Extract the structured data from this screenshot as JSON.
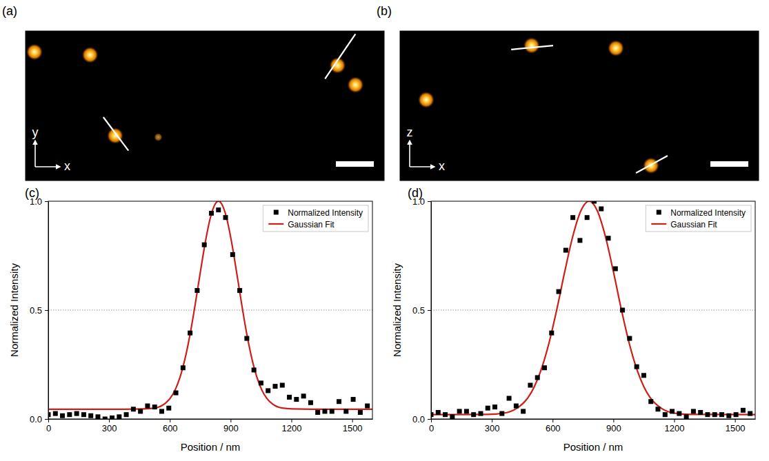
{
  "chart_data": [
    {
      "type": "image",
      "label": "(a)",
      "x_label": "x",
      "y_label": "y",
      "xlim": [
        0,
        1
      ],
      "ylim": [
        1,
        0
      ],
      "tick_labels": false,
      "spots": [
        {
          "x": 0.025,
          "y": 0.14,
          "intensity": 1
        },
        {
          "x": 0.18,
          "y": 0.16,
          "intensity": 1
        },
        {
          "x": 0.87,
          "y": 0.23,
          "intensity": 1
        },
        {
          "x": 0.92,
          "y": 0.36,
          "intensity": 1
        },
        {
          "x": 0.25,
          "y": 0.7,
          "intensity": 1
        },
        {
          "x": 0.37,
          "y": 0.71,
          "intensity": 0.25
        }
      ],
      "profile_lines": [
        {
          "x1": 0.835,
          "y1": 0.32,
          "x2": 0.92,
          "y2": 0.02
        },
        {
          "x1": 0.217,
          "y1": 0.576,
          "x2": 0.287,
          "y2": 0.8
        }
      ]
    },
    {
      "type": "image",
      "label": "(b)",
      "x_label": "x",
      "y_label": "z",
      "xlim": [
        0,
        1
      ],
      "ylim": [
        1,
        0
      ],
      "tick_labels": false,
      "spots": [
        {
          "x": 0.367,
          "y": 0.097,
          "intensity": 1
        },
        {
          "x": 0.602,
          "y": 0.115,
          "intensity": 1
        },
        {
          "x": 0.073,
          "y": 0.46,
          "intensity": 1
        },
        {
          "x": 0.7,
          "y": 0.9,
          "intensity": 1
        }
      ],
      "profile_lines": [
        {
          "x1": 0.31,
          "y1": 0.124,
          "x2": 0.427,
          "y2": 0.097
        },
        {
          "x1": 0.658,
          "y1": 0.949,
          "x2": 0.746,
          "y2": 0.834
        }
      ]
    },
    {
      "type": "scatter",
      "label": "(c)",
      "x_label": "Position / nm",
      "y_label": "Normalized Intensity",
      "xlim": [
        0,
        1600
      ],
      "ylim": [
        0,
        1
      ],
      "xticks": [
        0,
        300,
        600,
        900,
        1200,
        1500
      ],
      "yticks": [
        {
          "value": 0,
          "label": "0.0"
        },
        {
          "value": 0.5,
          "label": "0.5"
        },
        {
          "value": 1,
          "label": "1.0"
        }
      ],
      "hlines": [
        0.5
      ],
      "legend": "upper right",
      "series": [
        {
          "name": "Normalized Intensity",
          "type": "scatter",
          "marker": "square",
          "color": "#000000",
          "x": [
            0,
            35,
            70,
            105,
            140,
            175,
            210,
            245,
            280,
            315,
            350,
            385,
            420,
            455,
            490,
            525,
            560,
            595,
            630,
            665,
            700,
            735,
            770,
            805,
            840,
            875,
            910,
            945,
            980,
            1015,
            1050,
            1085,
            1120,
            1155,
            1190,
            1225,
            1260,
            1295,
            1330,
            1365,
            1400,
            1435,
            1470,
            1505,
            1540,
            1575
          ],
          "values": [
            0.02,
            0.025,
            0.015,
            0.02,
            0.025,
            0.02,
            0.015,
            0.01,
            0.0,
            0.005,
            0.01,
            0.02,
            0.045,
            0.035,
            0.06,
            0.055,
            0.035,
            0.05,
            0.12,
            0.235,
            0.395,
            0.59,
            0.8,
            0.945,
            0.96,
            0.925,
            0.755,
            0.59,
            0.37,
            0.225,
            0.165,
            0.13,
            0.15,
            0.155,
            0.1,
            0.09,
            0.105,
            0.075,
            0.03,
            0.035,
            0.035,
            0.08,
            0.035,
            0.09,
            0.03,
            0.06
          ]
        },
        {
          "name": "Gaussian Fit",
          "type": "line",
          "color": "#cc1f1a",
          "x": [
            0,
            375,
            475,
            525,
            575,
            600,
            625,
            650,
            675,
            700,
            725,
            750,
            775,
            800,
            825,
            840,
            855,
            880,
            905,
            930,
            955,
            980,
            1005,
            1030,
            1055,
            1080,
            1105,
            1155,
            1205,
            1305,
            1600
          ],
          "values": [
            0.045,
            0.045,
            0.046,
            0.05,
            0.07,
            0.093,
            0.131,
            0.191,
            0.277,
            0.389,
            0.525,
            0.671,
            0.811,
            0.924,
            0.989,
            1.0,
            0.989,
            0.924,
            0.811,
            0.671,
            0.525,
            0.389,
            0.277,
            0.191,
            0.131,
            0.093,
            0.07,
            0.05,
            0.046,
            0.045,
            0.045
          ]
        }
      ]
    },
    {
      "type": "scatter",
      "label": "(d)",
      "x_label": "Position / nm",
      "y_label": "Normalized Intensity",
      "xlim": [
        0,
        1600
      ],
      "ylim": [
        0,
        1
      ],
      "xticks": [
        0,
        300,
        600,
        900,
        1200,
        1500
      ],
      "yticks": [
        {
          "value": 0,
          "label": "0.0"
        },
        {
          "value": 0.5,
          "label": "0.5"
        },
        {
          "value": 1,
          "label": "1.0"
        }
      ],
      "hlines": [
        0.5
      ],
      "legend": "upper right",
      "series": [
        {
          "name": "Normalized Intensity",
          "type": "scatter",
          "marker": "square",
          "color": "#000000",
          "x": [
            0,
            35,
            70,
            105,
            140,
            175,
            210,
            245,
            280,
            315,
            350,
            385,
            420,
            455,
            490,
            525,
            560,
            595,
            630,
            665,
            700,
            735,
            770,
            805,
            840,
            875,
            910,
            945,
            980,
            1015,
            1050,
            1085,
            1120,
            1155,
            1190,
            1225,
            1260,
            1295,
            1330,
            1365,
            1400,
            1435,
            1470,
            1505,
            1540,
            1575
          ],
          "values": [
            0.02,
            0.03,
            0.02,
            0.01,
            0.035,
            0.035,
            0.02,
            0.025,
            0.05,
            0.055,
            0.025,
            0.095,
            0.06,
            0.035,
            0.155,
            0.19,
            0.235,
            0.395,
            0.585,
            0.775,
            0.925,
            0.82,
            0.925,
            1.0,
            0.965,
            0.83,
            0.69,
            0.5,
            0.37,
            0.24,
            0.2,
            0.08,
            0.045,
            0.02,
            0.035,
            0.025,
            0.01,
            0.035,
            0.03,
            0.02,
            0.02,
            0.02,
            0.015,
            0.02,
            0.04,
            0.025
          ]
        },
        {
          "name": "Gaussian Fit",
          "type": "line",
          "color": "#cc1f1a",
          "x": [
            0,
            280,
            360,
            420,
            480,
            510,
            540,
            580,
            620,
            660,
            700,
            740,
            780,
            820,
            860,
            900,
            940,
            980,
            1020,
            1050,
            1080,
            1140,
            1200,
            1280,
            1600
          ],
          "values": [
            0.02,
            0.021,
            0.027,
            0.047,
            0.1,
            0.149,
            0.217,
            0.341,
            0.5,
            0.677,
            0.84,
            0.957,
            1.0,
            0.957,
            0.84,
            0.677,
            0.5,
            0.341,
            0.217,
            0.149,
            0.1,
            0.047,
            0.027,
            0.021,
            0.02
          ]
        }
      ]
    }
  ]
}
